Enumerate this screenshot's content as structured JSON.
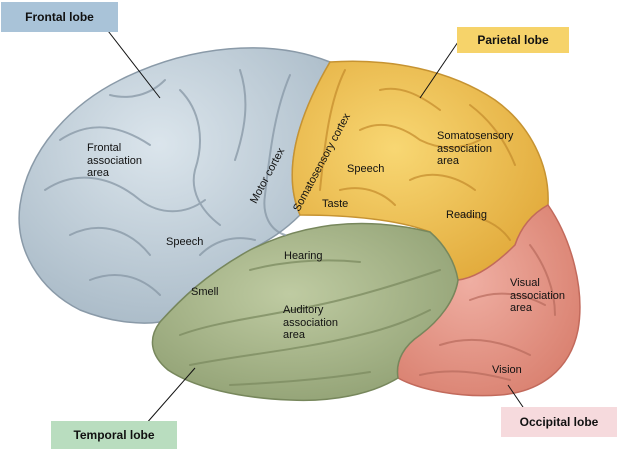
{
  "lobes": {
    "frontal": "Frontal lobe",
    "parietal": "Parietal lobe",
    "temporal": "Temporal lobe",
    "occipital": "Occipital lobe"
  },
  "regions": {
    "frontal_association": [
      "Frontal",
      "association",
      "area"
    ],
    "speech_frontal": "Speech",
    "motor_cortex": "Motor cortex",
    "somatosensory_cortex": "Somatosensory cortex",
    "speech_parietal": "Speech",
    "taste": "Taste",
    "somatosensory_association": [
      "Somatosensory",
      "association",
      "area"
    ],
    "reading": "Reading",
    "hearing": "Hearing",
    "smell": "Smell",
    "auditory_association": [
      "Auditory",
      "association",
      "area"
    ],
    "visual_association": [
      "Visual",
      "association",
      "area"
    ],
    "vision": "Vision"
  },
  "colors": {
    "frontal": "#c3d1dc",
    "parietal": "#f2c24e",
    "temporal": "#aab98e",
    "occipital": "#e9998e",
    "frontal_callout": "#a9c3d8",
    "parietal_callout": "#f6d36a",
    "temporal_callout": "#b9ddbf",
    "occipital_callout": "#f6dadd"
  }
}
